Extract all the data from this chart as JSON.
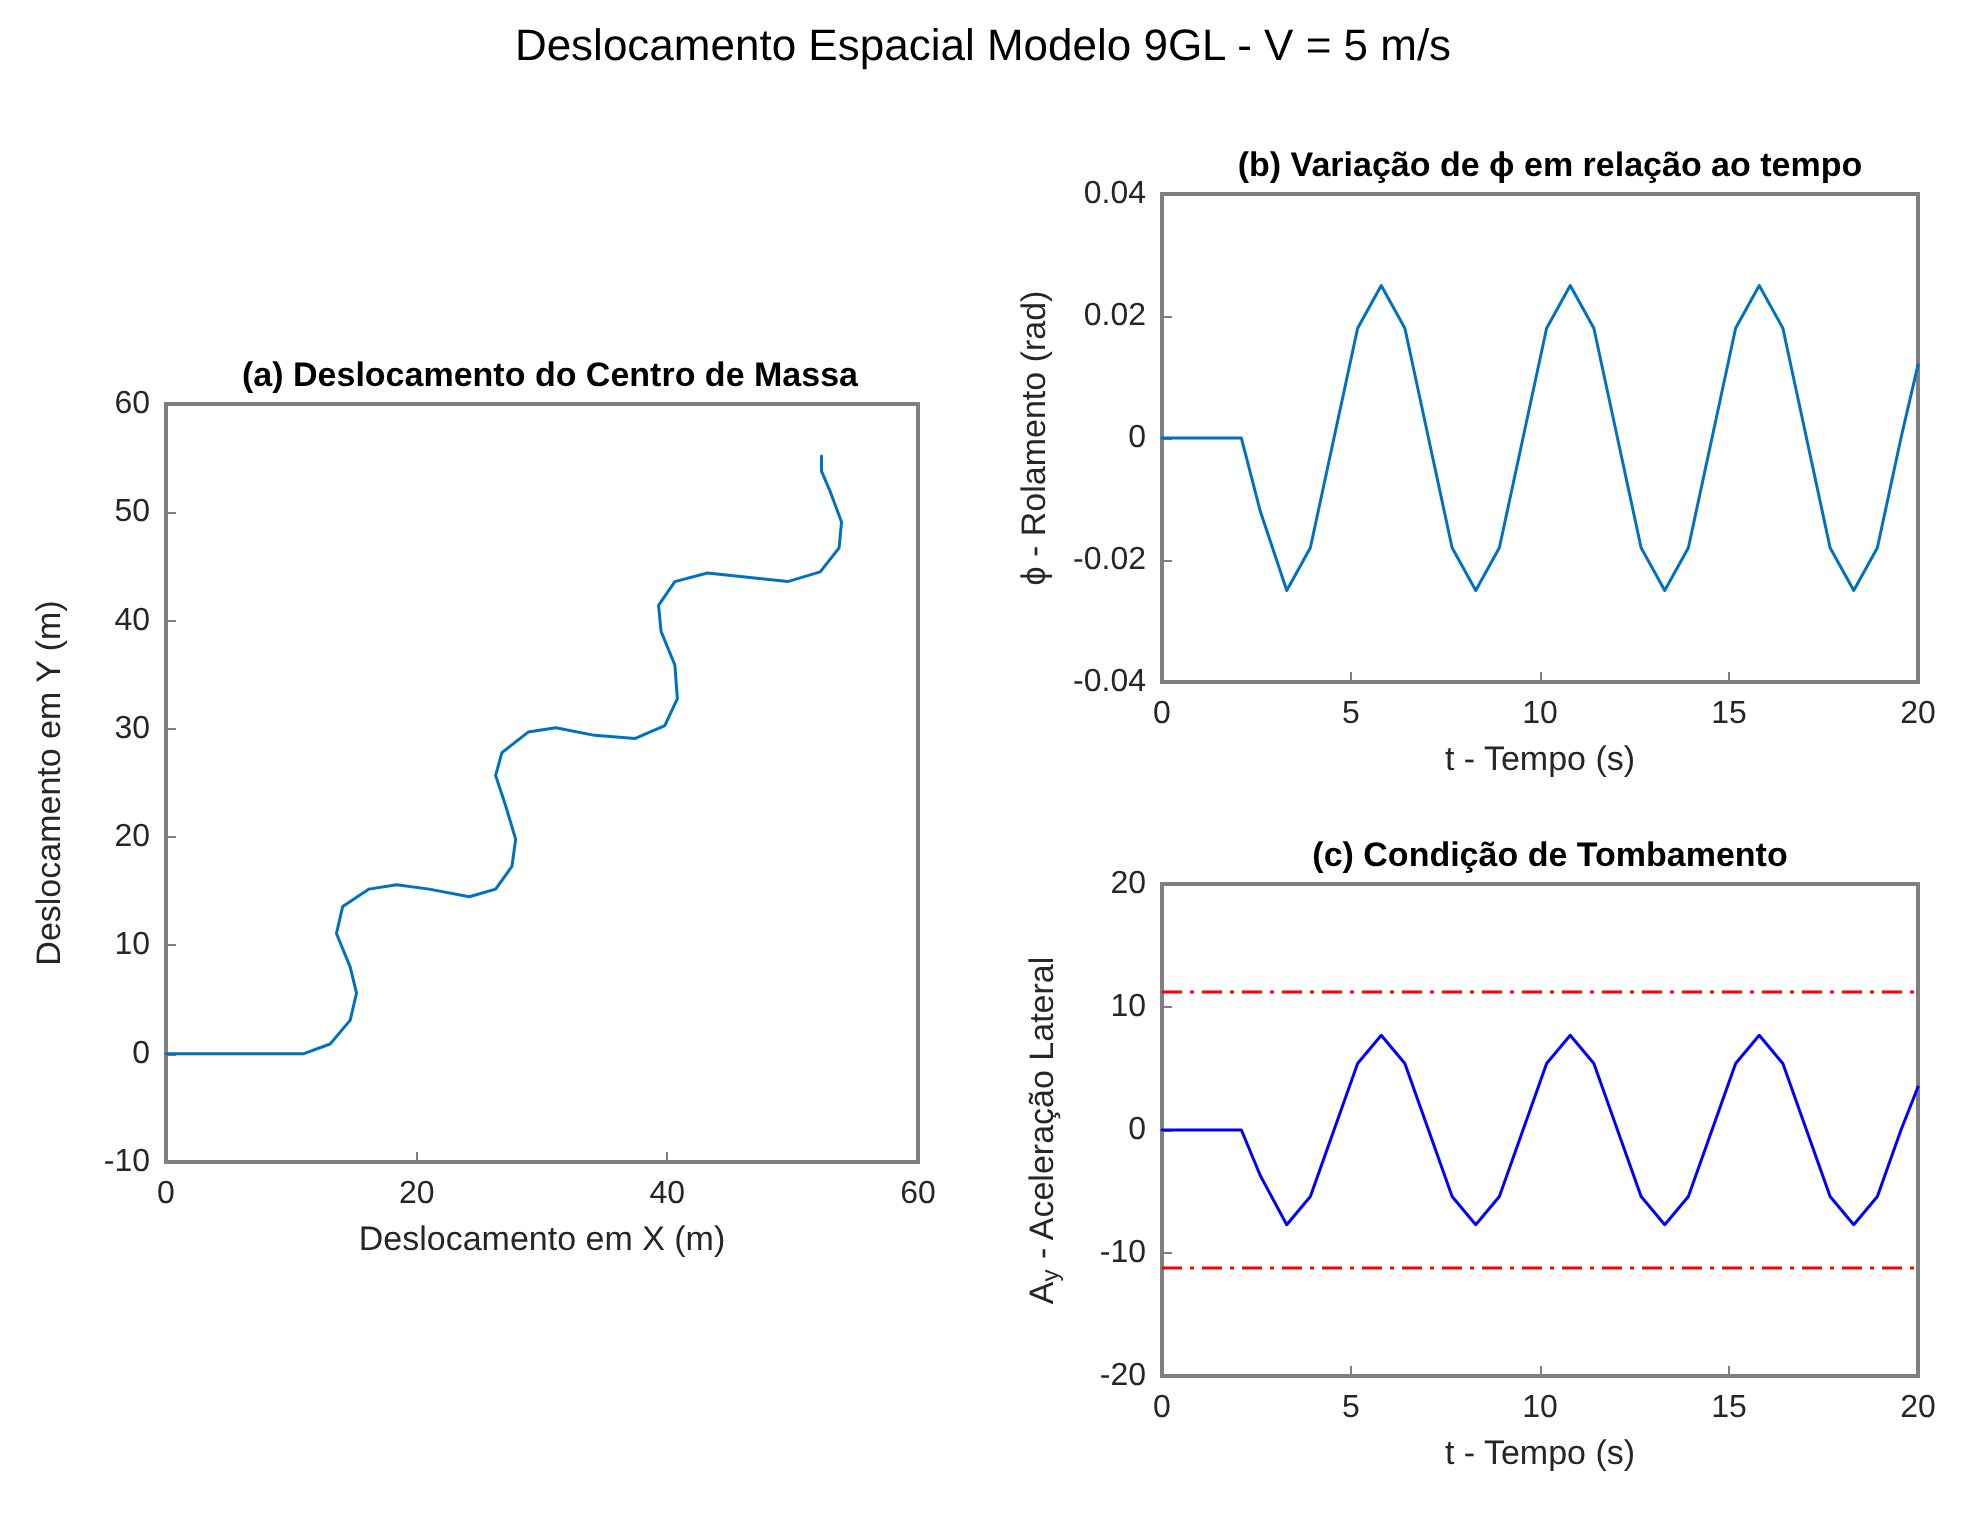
{
  "chart_data": [
    {
      "type": "line",
      "title": "(a) Deslocamento do Centro de Massa",
      "xlabel": "Deslocamento em X (m)",
      "ylabel": "Deslocamento em Y (m)",
      "annotations": [
        "Deslocamento Espacial Modelo 9GL - V = 5 m/s"
      ],
      "xlim": [
        0,
        60
      ],
      "xticks": [
        0,
        20,
        40,
        60
      ],
      "ylim": [
        -10,
        60
      ],
      "yticks": [
        -10,
        0,
        10,
        20,
        30,
        40,
        50,
        60
      ],
      "grid": false,
      "series": [
        {
          "color": "#0072bd",
          "x": [
            0,
            11,
            13.1,
            14.7,
            15.2,
            14.7,
            13.6,
            14.1,
            16.2,
            18.4,
            21,
            24.2,
            26.3,
            27.6,
            27.9,
            27.1,
            26.3,
            26.8,
            28.9,
            31.1,
            34.2,
            37.4,
            39.8,
            40.8,
            40.6,
            39.5,
            39.3,
            40.6,
            43.2,
            46.4,
            49.6,
            52.2,
            53.7,
            53.9,
            53,
            52.3,
            52.3
          ],
          "values": [
            0,
            0,
            0.9,
            3.1,
            5.6,
            8,
            11.1,
            13.6,
            15.2,
            15.6,
            15.2,
            14.5,
            15.2,
            17.3,
            19.8,
            22.9,
            25.7,
            27.8,
            29.7,
            30.1,
            29.4,
            29.1,
            30.3,
            32.8,
            35.9,
            39,
            41.4,
            43.6,
            44.4,
            44,
            43.6,
            44.5,
            46.7,
            49.1,
            51.9,
            53.8,
            55.2
          ]
        }
      ]
    },
    {
      "type": "line",
      "title": "(b) Variação de ϕ em relação ao tempo",
      "xlabel": "t - Tempo (s)",
      "ylabel": "ϕ - Rolamento (rad)",
      "xlim": [
        0,
        20
      ],
      "xticks": [
        0,
        5,
        10,
        15,
        20
      ],
      "ylim": [
        -0.04,
        0.04
      ],
      "yticks": [
        -0.04,
        -0.02,
        0,
        0.02,
        0.04
      ],
      "grid": false,
      "x": [
        0,
        2.1,
        2.6,
        3.3,
        3.925,
        4.55,
        5.175,
        5.8,
        6.425,
        7.05,
        7.675,
        8.3,
        8.925,
        9.55,
        10.175,
        10.8,
        11.425,
        12.05,
        12.675,
        13.3,
        13.925,
        14.55,
        15.175,
        15.8,
        16.425,
        17.05,
        17.675,
        18.3,
        18.925,
        19.55,
        20
      ],
      "series": [
        {
          "color": "#0072bd",
          "values": [
            0,
            0,
            -0.012,
            -0.025,
            -0.018,
            0,
            0.018,
            0.025,
            0.018,
            0,
            -0.018,
            -0.025,
            -0.018,
            0,
            0.018,
            0.025,
            0.018,
            0,
            -0.018,
            -0.025,
            -0.018,
            0,
            0.018,
            0.025,
            0.018,
            0,
            -0.018,
            -0.025,
            -0.018,
            0,
            0.012
          ]
        }
      ]
    },
    {
      "type": "line",
      "title": "(c) Condição de Tombamento",
      "xlabel": "t - Tempo (s)",
      "ylabel": "A$_{y}$ - Aceleração Lateral",
      "xlim": [
        0,
        20
      ],
      "xticks": [
        0,
        5,
        10,
        15,
        20
      ],
      "ylim": [
        -20,
        20
      ],
      "yticks": [
        -20,
        -10,
        0,
        10,
        20
      ],
      "grid": false,
      "x": [
        0,
        2.1,
        2.6,
        3.3,
        3.925,
        4.55,
        5.175,
        5.8,
        6.425,
        7.05,
        7.675,
        8.3,
        8.925,
        9.55,
        10.175,
        10.8,
        11.425,
        12.05,
        12.675,
        13.3,
        13.925,
        14.55,
        15.175,
        15.8,
        16.425,
        17.05,
        17.675,
        18.3,
        18.925,
        19.55,
        20
      ],
      "series": [
        {
          "color": "#0000ff",
          "values": [
            0,
            0,
            -3.7,
            -7.7,
            -5.4,
            0,
            5.4,
            7.7,
            5.4,
            0,
            -5.4,
            -7.7,
            -5.4,
            0,
            5.4,
            7.7,
            5.4,
            0,
            -5.4,
            -7.7,
            -5.4,
            0,
            5.4,
            7.7,
            5.4,
            0,
            -5.4,
            -7.7,
            -5.4,
            0,
            3.5
          ]
        }
      ],
      "ref_lines": [
        {
          "axis": "y",
          "value": 11.2,
          "color": "#ff0000",
          "line_style": "dashed"
        },
        {
          "axis": "y",
          "value": -11.2,
          "color": "#ff0000",
          "line_style": "dashed"
        }
      ]
    }
  ]
}
